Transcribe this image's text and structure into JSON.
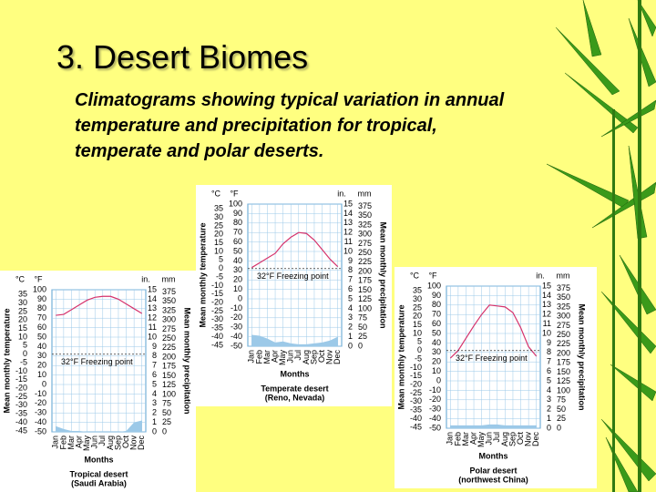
{
  "title": "3. Desert Biomes",
  "subtitle": "Climatograms showing typical variation in annual temperature and precipitation for tropical, temperate and polar deserts.",
  "chart_data": [
    {
      "type": "line",
      "categories": [
        "Jan",
        "Feb",
        "Mar",
        "Apr",
        "May",
        "Jun",
        "Jul",
        "Aug",
        "Sep",
        "Oct",
        "Nov",
        "Dec"
      ],
      "xlabel": "Months",
      "ylabel": "Mean monthly temperature",
      "y2label": "Mean monthly precipitation",
      "caption": [
        "Tropical desert",
        "(Saudi Arabia)"
      ],
      "units": [
        "°C",
        "°F",
        "in.",
        "mm"
      ],
      "annotation": "32°F Freezing point",
      "freezing_f": 32,
      "ylim": [
        -50,
        100
      ],
      "yticks": [
        -50,
        -40,
        -30,
        -20,
        -10,
        0,
        10,
        20,
        30,
        40,
        50,
        60,
        70,
        80,
        90,
        100
      ],
      "ylim_c": [
        -45.6,
        37.8
      ],
      "yticks_c": [
        -45,
        -40,
        -35,
        -30,
        -25,
        -20,
        -15,
        -10,
        -5,
        0,
        5,
        10,
        15,
        20,
        25,
        30,
        35
      ],
      "y2lim": [
        0,
        15
      ],
      "y2ticks": [
        0,
        1,
        2,
        3,
        4,
        5,
        6,
        7,
        8,
        9,
        10,
        11,
        12,
        13,
        14,
        15
      ],
      "y2lim_mm": [
        0,
        381
      ],
      "y2ticks_mm": [
        0,
        25,
        50,
        75,
        100,
        125,
        150,
        175,
        200,
        225,
        250,
        275,
        300,
        325,
        350,
        375
      ],
      "series": [
        {
          "color": "#d6336c",
          "values": [
            73,
            74,
            79,
            84,
            89,
            92,
            93,
            93,
            90,
            85,
            80,
            75
          ]
        },
        {
          "axis": "y2",
          "area": true,
          "color": "#9cc9e8",
          "values": [
            0.6,
            0.3,
            0.1,
            0.1,
            0,
            0,
            0,
            0,
            0,
            0.1,
            1.0,
            1.2
          ]
        }
      ]
    },
    {
      "type": "line",
      "categories": [
        "Jan",
        "Feb",
        "Mar",
        "Apr",
        "May",
        "Jun",
        "Jul",
        "Aug",
        "Sep",
        "Oct",
        "Nov",
        "Dec"
      ],
      "xlabel": "Months",
      "ylabel": "Mean monthly temperature",
      "y2label": "Mean monthly precipitation",
      "caption": [
        "Temperate desert",
        "(Reno, Nevada)"
      ],
      "units": [
        "°C",
        "°F",
        "in.",
        "mm"
      ],
      "annotation": "32°F Freezing point",
      "freezing_f": 32,
      "ylim": [
        -50,
        100
      ],
      "yticks": [
        -50,
        -40,
        -30,
        -20,
        -10,
        0,
        10,
        20,
        30,
        40,
        50,
        60,
        70,
        80,
        90,
        100
      ],
      "ylim_c": [
        -45.6,
        37.8
      ],
      "yticks_c": [
        -45,
        -40,
        -35,
        -30,
        -25,
        -20,
        -15,
        -10,
        -5,
        0,
        5,
        10,
        15,
        20,
        25,
        30,
        35
      ],
      "y2lim": [
        0,
        15
      ],
      "y2ticks": [
        0,
        1,
        2,
        3,
        4,
        5,
        6,
        7,
        8,
        9,
        10,
        11,
        12,
        13,
        14,
        15
      ],
      "y2lim_mm": [
        0,
        381
      ],
      "y2ticks_mm": [
        0,
        25,
        50,
        75,
        100,
        125,
        150,
        175,
        200,
        225,
        250,
        275,
        300,
        325,
        350,
        375
      ],
      "series": [
        {
          "color": "#d6336c",
          "values": [
            33,
            38,
            43,
            48,
            58,
            65,
            70,
            69,
            62,
            52,
            42,
            34
          ]
        },
        {
          "axis": "y2",
          "area": true,
          "color": "#9cc9e8",
          "values": [
            1.2,
            1.1,
            0.8,
            0.4,
            0.5,
            0.3,
            0.2,
            0.2,
            0.3,
            0.4,
            0.6,
            1.0
          ]
        }
      ]
    },
    {
      "type": "line",
      "categories": [
        "Jan",
        "Feb",
        "Mar",
        "Apr",
        "May",
        "Jun",
        "Jul",
        "Aug",
        "Sep",
        "Oct",
        "Nov",
        "Dec"
      ],
      "xlabel": "Months",
      "ylabel": "Mean monthly temperature",
      "y2label": "Mean monthly precipitation",
      "caption": [
        "Polar desert",
        "(northwest China)"
      ],
      "units": [
        "°C",
        "°F",
        "in.",
        "mm"
      ],
      "annotation": "32°F Freezing point",
      "freezing_f": 32,
      "ylim": [
        -50,
        100
      ],
      "yticks": [
        -50,
        -40,
        -30,
        -20,
        -10,
        0,
        10,
        20,
        30,
        40,
        50,
        60,
        70,
        80,
        90,
        100
      ],
      "ylim_c": [
        -45.6,
        37.8
      ],
      "yticks_c": [
        -45,
        -40,
        -35,
        -30,
        -25,
        -20,
        -15,
        -10,
        -5,
        0,
        5,
        10,
        15,
        20,
        25,
        30,
        35
      ],
      "y2lim": [
        0,
        15
      ],
      "y2ticks": [
        0,
        1,
        2,
        3,
        4,
        5,
        6,
        7,
        8,
        9,
        10,
        11,
        12,
        13,
        14,
        15
      ],
      "y2lim_mm": [
        0,
        381
      ],
      "y2ticks_mm": [
        0,
        25,
        50,
        75,
        100,
        125,
        150,
        175,
        200,
        225,
        250,
        275,
        300,
        325,
        350,
        375
      ],
      "series": [
        {
          "color": "#d6336c",
          "values": [
            24,
            32,
            45,
            58,
            70,
            80,
            79,
            78,
            72,
            56,
            36,
            26
          ]
        },
        {
          "axis": "y2",
          "area": true,
          "color": "#9cc9e8",
          "values": [
            0.3,
            0.3,
            0.3,
            0.3,
            0.3,
            0.4,
            0.4,
            0.3,
            0.3,
            0.3,
            0.3,
            0.3
          ]
        }
      ]
    }
  ]
}
